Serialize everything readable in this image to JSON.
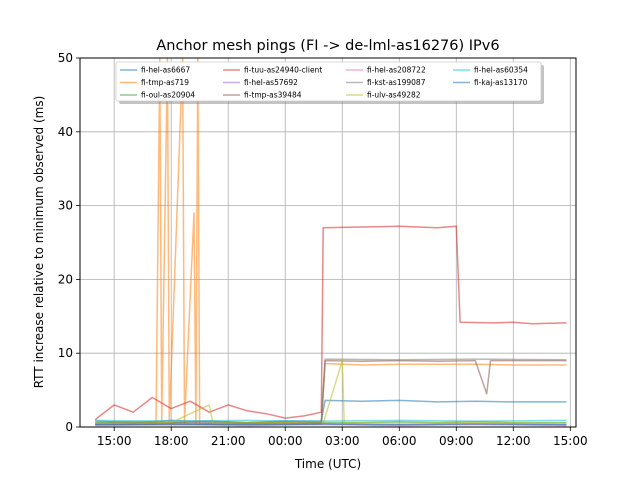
{
  "chart_data": {
    "type": "line",
    "title": "Anchor mesh pings (FI -> de-lml-as16276) IPv6",
    "xlabel": "Time (UTC)",
    "ylabel": "RTT increase relative to minimum observed (ms)",
    "x_unit": "hours",
    "xlim": [
      13.2,
      39.3
    ],
    "ylim": [
      0,
      50
    ],
    "x_ticks": [
      {
        "value": 15,
        "label": "15:00"
      },
      {
        "value": 18,
        "label": "18:00"
      },
      {
        "value": 21,
        "label": "21:00"
      },
      {
        "value": 24,
        "label": "00:00"
      },
      {
        "value": 27,
        "label": "03:00"
      },
      {
        "value": 30,
        "label": "06:00"
      },
      {
        "value": 33,
        "label": "09:00"
      },
      {
        "value": 36,
        "label": "12:00"
      },
      {
        "value": 39,
        "label": "15:00"
      }
    ],
    "y_ticks": [
      0,
      10,
      20,
      30,
      40,
      50
    ],
    "grid": true,
    "legend_position": "top-center",
    "series": [
      {
        "name": "fi-hel-as6667",
        "color": "#1f77b4",
        "points": [
          [
            14.0,
            0.8
          ],
          [
            16.0,
            0.6
          ],
          [
            18.0,
            0.9
          ],
          [
            20.0,
            0.7
          ],
          [
            22.0,
            0.6
          ],
          [
            24.0,
            0.8
          ],
          [
            25.9,
            0.8
          ],
          [
            26.1,
            3.6
          ],
          [
            28.0,
            3.5
          ],
          [
            30.0,
            3.6
          ],
          [
            32.0,
            3.4
          ],
          [
            34.0,
            3.5
          ],
          [
            36.0,
            3.4
          ],
          [
            38.0,
            3.4
          ],
          [
            38.8,
            3.4
          ]
        ]
      },
      {
        "name": "fi-tmp-as719",
        "color": "#ff7f0e",
        "points": [
          [
            14.0,
            0.4
          ],
          [
            17.2,
            0.4
          ],
          [
            17.4,
            50
          ],
          [
            17.5,
            0.6
          ],
          [
            17.8,
            50
          ],
          [
            17.9,
            0.5
          ],
          [
            18.6,
            50
          ],
          [
            18.7,
            0.6
          ],
          [
            19.2,
            29
          ],
          [
            19.3,
            0.5
          ],
          [
            19.4,
            50
          ],
          [
            19.5,
            0.4
          ],
          [
            22.0,
            0.5
          ],
          [
            25.9,
            0.5
          ],
          [
            26.1,
            8.6
          ],
          [
            28.0,
            8.4
          ],
          [
            30.0,
            8.5
          ],
          [
            32.0,
            8.5
          ],
          [
            34.0,
            8.5
          ],
          [
            36.0,
            8.4
          ],
          [
            38.8,
            8.4
          ]
        ]
      },
      {
        "name": "fi-oul-as20904",
        "color": "#2ca02c",
        "points": [
          [
            14.0,
            0.6
          ],
          [
            16.0,
            0.7
          ],
          [
            18.0,
            0.6
          ],
          [
            20.0,
            0.8
          ],
          [
            22.0,
            0.6
          ],
          [
            24.0,
            0.7
          ],
          [
            26.0,
            0.6
          ],
          [
            28.0,
            0.6
          ],
          [
            30.0,
            0.7
          ],
          [
            32.0,
            0.6
          ],
          [
            34.0,
            0.7
          ],
          [
            36.0,
            0.6
          ],
          [
            38.8,
            0.6
          ]
        ]
      },
      {
        "name": "fi-tuu-as24940-client",
        "color": "#d62728",
        "points": [
          [
            14.0,
            1.0
          ],
          [
            15.0,
            3.0
          ],
          [
            16.0,
            2.0
          ],
          [
            17.0,
            4.0
          ],
          [
            18.0,
            2.5
          ],
          [
            19.0,
            3.5
          ],
          [
            20.0,
            2.0
          ],
          [
            21.0,
            3.0
          ],
          [
            22.0,
            2.2
          ],
          [
            23.0,
            1.8
          ],
          [
            24.0,
            1.2
          ],
          [
            25.0,
            1.5
          ],
          [
            25.9,
            2.0
          ],
          [
            26.0,
            27.0
          ],
          [
            28.0,
            27.1
          ],
          [
            30.0,
            27.2
          ],
          [
            32.0,
            27.0
          ],
          [
            33.0,
            27.2
          ],
          [
            33.2,
            14.2
          ],
          [
            35.0,
            14.1
          ],
          [
            36.0,
            14.2
          ],
          [
            37.0,
            14.0
          ],
          [
            38.8,
            14.1
          ]
        ]
      },
      {
        "name": "fi-hel-as57692",
        "color": "#9467bd",
        "points": [
          [
            14.0,
            0.3
          ],
          [
            18.0,
            0.4
          ],
          [
            22.0,
            0.3
          ],
          [
            26.0,
            0.4
          ],
          [
            30.0,
            0.3
          ],
          [
            34.0,
            0.4
          ],
          [
            38.8,
            0.3
          ]
        ]
      },
      {
        "name": "fi-tmp-as39484",
        "color": "#8c564b",
        "points": [
          [
            14.0,
            0.5
          ],
          [
            18.0,
            0.6
          ],
          [
            22.0,
            0.5
          ],
          [
            25.9,
            0.6
          ],
          [
            26.1,
            9.0
          ],
          [
            28.0,
            8.9
          ],
          [
            30.0,
            9.0
          ],
          [
            32.0,
            8.9
          ],
          [
            34.0,
            9.0
          ],
          [
            34.6,
            4.5
          ],
          [
            34.8,
            9.0
          ],
          [
            36.0,
            9.0
          ],
          [
            38.8,
            9.0
          ]
        ]
      },
      {
        "name": "fi-hel-as208722",
        "color": "#e377c2",
        "points": [
          [
            14.0,
            0.2
          ],
          [
            18.0,
            0.3
          ],
          [
            22.0,
            0.2
          ],
          [
            26.0,
            0.3
          ],
          [
            30.0,
            0.2
          ],
          [
            34.0,
            0.3
          ],
          [
            38.8,
            0.2
          ]
        ]
      },
      {
        "name": "fi-kst-as199087",
        "color": "#7f7f7f",
        "points": [
          [
            14.0,
            0.4
          ],
          [
            18.0,
            0.3
          ],
          [
            22.0,
            0.4
          ],
          [
            25.9,
            0.4
          ],
          [
            26.1,
            9.2
          ],
          [
            30.0,
            9.1
          ],
          [
            34.0,
            9.2
          ],
          [
            38.8,
            9.1
          ]
        ]
      },
      {
        "name": "fi-ulv-as49282",
        "color": "#bcbd22",
        "points": [
          [
            14.0,
            0.5
          ],
          [
            18.0,
            0.6
          ],
          [
            20.0,
            3.0
          ],
          [
            20.2,
            0.5
          ],
          [
            22.0,
            0.6
          ],
          [
            26.0,
            0.5
          ],
          [
            27.0,
            9.0
          ],
          [
            27.1,
            0.6
          ],
          [
            30.0,
            0.5
          ],
          [
            34.0,
            0.6
          ],
          [
            38.8,
            0.5
          ]
        ]
      },
      {
        "name": "fi-hel-as60354",
        "color": "#17becf",
        "points": [
          [
            14.0,
            0.9
          ],
          [
            18.0,
            0.8
          ],
          [
            22.0,
            0.9
          ],
          [
            26.0,
            0.8
          ],
          [
            30.0,
            0.9
          ],
          [
            34.0,
            0.8
          ],
          [
            38.8,
            0.9
          ]
        ]
      },
      {
        "name": "fi-kaj-as13170",
        "color": "#1f77b4",
        "points": [
          [
            14.0,
            0.3
          ],
          [
            18.0,
            0.4
          ],
          [
            22.0,
            0.3
          ],
          [
            26.0,
            0.4
          ],
          [
            30.0,
            0.3
          ],
          [
            34.0,
            0.4
          ],
          [
            38.8,
            0.3
          ]
        ]
      }
    ]
  }
}
